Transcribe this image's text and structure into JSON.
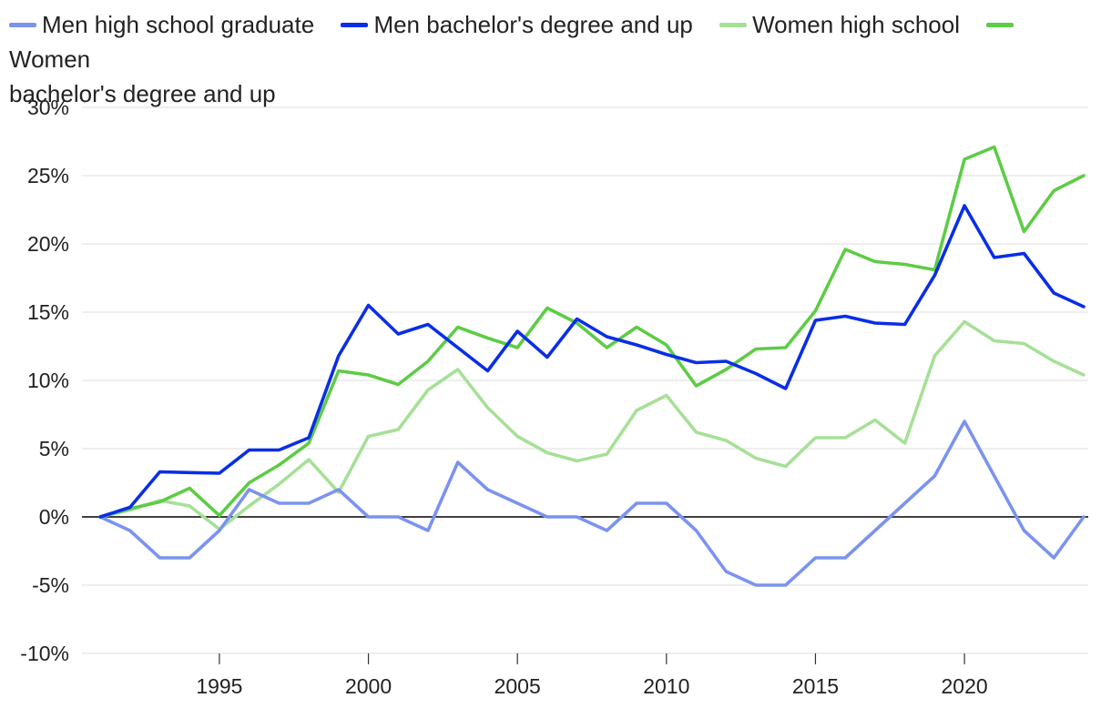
{
  "chart_data": {
    "type": "line",
    "title": "",
    "xlabel": "",
    "ylabel": "",
    "x": [
      1991,
      1992,
      1993,
      1994,
      1995,
      1996,
      1997,
      1998,
      1999,
      2000,
      2001,
      2002,
      2003,
      2004,
      2005,
      2006,
      2007,
      2008,
      2009,
      2010,
      2011,
      2012,
      2013,
      2014,
      2015,
      2016,
      2017,
      2018,
      2019,
      2020,
      2021,
      2022,
      2023,
      2024
    ],
    "xlim": [
      1991,
      2024
    ],
    "ylim": [
      -10,
      30
    ],
    "x_ticks": [
      1995,
      2000,
      2005,
      2010,
      2015,
      2020
    ],
    "y_ticks": [
      -10,
      -5,
      0,
      5,
      10,
      15,
      20,
      25,
      30
    ],
    "y_tick_labels": [
      "-10%",
      "-5%",
      "0%",
      "5%",
      "10%",
      "15%",
      "20%",
      "25%",
      "30%"
    ],
    "grid": "horizontal",
    "legend_position": "top-left",
    "series": [
      {
        "name": "Men high school graduate",
        "color": "#7b93ef",
        "values": [
          0,
          -1,
          -3,
          -3,
          -1,
          2,
          1,
          1,
          2,
          0,
          0,
          -1,
          4,
          2,
          1,
          0,
          0,
          -1,
          1,
          1,
          -1,
          -4,
          -5,
          -5,
          -3,
          -3,
          -1,
          1,
          3,
          7,
          3,
          -1,
          -3,
          0
        ]
      },
      {
        "name": "Men bachelor's degree and up",
        "color": "#0a2ee6",
        "values": [
          0,
          0.7,
          3.3,
          3.25,
          3.2,
          4.9,
          4.9,
          5.8,
          11.8,
          15.5,
          13.4,
          14.1,
          12.4,
          10.7,
          13.6,
          11.7,
          14.5,
          13.2,
          12.6,
          11.9,
          11.3,
          11.4,
          10.5,
          9.4,
          14.4,
          14.7,
          14.2,
          14.1,
          17.7,
          22.8,
          19.0,
          19.3,
          16.4,
          15.4
        ]
      },
      {
        "name": "Women high school",
        "color": "#a6e097",
        "values": [
          0,
          0.5,
          1.2,
          0.8,
          -0.9,
          0.8,
          2.4,
          4.2,
          1.8,
          5.9,
          6.4,
          9.3,
          10.8,
          8.0,
          5.9,
          4.7,
          4.1,
          4.6,
          7.8,
          8.9,
          6.2,
          5.6,
          4.3,
          3.7,
          5.8,
          5.8,
          7.1,
          5.4,
          11.8,
          14.3,
          12.9,
          12.7,
          11.4,
          10.4
        ]
      },
      {
        "name": "Women bachelor's degree and up",
        "legend_line_1": "Women",
        "legend_line_2": "bachelor's degree and up",
        "color": "#5dcc46",
        "values": [
          0,
          0.6,
          1.1,
          2.1,
          0.1,
          2.5,
          3.8,
          5.4,
          10.7,
          10.4,
          9.7,
          11.4,
          13.9,
          13.1,
          12.4,
          15.3,
          14.2,
          12.4,
          13.9,
          12.6,
          9.6,
          10.8,
          12.3,
          12.4,
          15.1,
          19.6,
          18.7,
          18.5,
          18.1,
          26.2,
          27.1,
          20.9,
          23.9,
          25.0
        ]
      }
    ]
  }
}
